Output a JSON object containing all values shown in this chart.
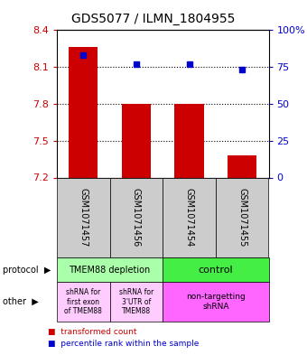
{
  "title": "GDS5077 / ILMN_1804955",
  "samples": [
    "GSM1071457",
    "GSM1071456",
    "GSM1071454",
    "GSM1071455"
  ],
  "bar_values": [
    8.265,
    7.8,
    7.8,
    7.38
  ],
  "bar_bottom": 7.2,
  "blue_values": [
    83,
    77,
    77,
    73
  ],
  "ylim": [
    7.2,
    8.4
  ],
  "yticks_left": [
    7.2,
    7.5,
    7.8,
    8.1,
    8.4
  ],
  "yticks_right": [
    0,
    25,
    50,
    75,
    100
  ],
  "ytick_labels_left": [
    "7.2",
    "7.5",
    "7.8",
    "8.1",
    "8.4"
  ],
  "ytick_labels_right": [
    "0",
    "25",
    "50",
    "75",
    "100%"
  ],
  "bar_color": "#cc0000",
  "blue_color": "#0000cc",
  "protocol_labels": [
    "TMEM88 depletion",
    "control"
  ],
  "protocol_colors": [
    "#aaffaa",
    "#44ee44"
  ],
  "other_label1": "shRNA for\nfirst exon\nof TMEM88",
  "other_label2": "shRNA for\n3'UTR of\nTMEM88",
  "other_label3": "non-targetting\nshRNA",
  "other_colors": [
    "#ffccff",
    "#ffccff",
    "#ff66ff"
  ],
  "sample_bg": "#cccccc",
  "legend_red_label": "transformed count",
  "legend_blue_label": "percentile rank within the sample",
  "left_label_protocol": "protocol",
  "left_label_other": "other"
}
